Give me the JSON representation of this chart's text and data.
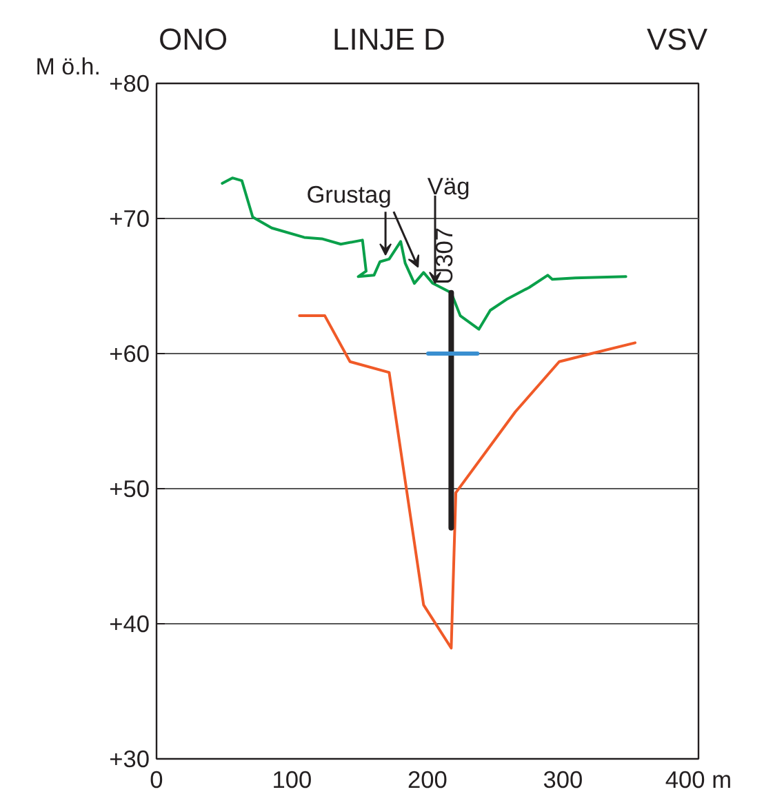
{
  "chart_data": {
    "type": "line",
    "title": "LINJE D",
    "ylabel": "M ö.h.",
    "xlim": [
      0,
      400
    ],
    "ylim": [
      30,
      80
    ],
    "xticks": [
      0,
      100,
      200,
      300,
      {
        "value": 400,
        "label": "400 m"
      }
    ],
    "yticks": [
      {
        "value": 30,
        "label": "+30"
      },
      {
        "value": 40,
        "label": "+40"
      },
      {
        "value": 50,
        "label": "+50"
      },
      {
        "value": 60,
        "label": "+60"
      },
      {
        "value": 70,
        "label": "+70"
      },
      {
        "value": 80,
        "label": "+80"
      }
    ],
    "grid": "y",
    "series": [
      {
        "color": "#0aa04a",
        "x": [
          48.5,
          56,
          63,
          71,
          85,
          109,
          122,
          136,
          152,
          154.7,
          148.9,
          160.5,
          164.9,
          171.7,
          180.2,
          183.5,
          190.3,
          197.1,
          203.9,
          217.5,
          224.2,
          237.9,
          246.3,
          258.2,
          275.1,
          288.7,
          292.1,
          309.1,
          346.4
        ],
        "values": [
          72.6,
          73.0,
          72.8,
          70.1,
          69.3,
          68.6,
          68.5,
          68.1,
          68.4,
          66.1,
          65.7,
          65.8,
          66.8,
          67.0,
          68.3,
          66.7,
          65.2,
          66.0,
          65.2,
          64.5,
          62.8,
          61.8,
          63.2,
          64.0,
          64.9,
          65.8,
          65.5,
          65.6,
          65.7
        ]
      },
      {
        "color": "#f05a28",
        "x": [
          105.5,
          124.2,
          142.8,
          171.7,
          197.1,
          217.5,
          220.9,
          264.9,
          297.2,
          320.9,
          353.2
        ],
        "values": [
          62.8,
          62.8,
          59.4,
          58.6,
          41.4,
          38.2,
          49.7,
          55.7,
          59.4,
          60.0,
          60.8
        ]
      },
      {
        "color": "#231f20",
        "name": "U307",
        "x": [
          217.5,
          217.5
        ],
        "values": [
          64.5,
          47.1
        ]
      },
      {
        "color": "#3a8fd0",
        "x": [
          200.5,
          236.8
        ],
        "values": [
          60,
          60
        ]
      }
    ],
    "annotations": [
      "ONO",
      "VSV",
      {
        "text": "Grustag",
        "x": 169,
        "y": 67.3
      },
      {
        "text": "Väg",
        "x": 205.6,
        "y": 65.2
      }
    ]
  }
}
